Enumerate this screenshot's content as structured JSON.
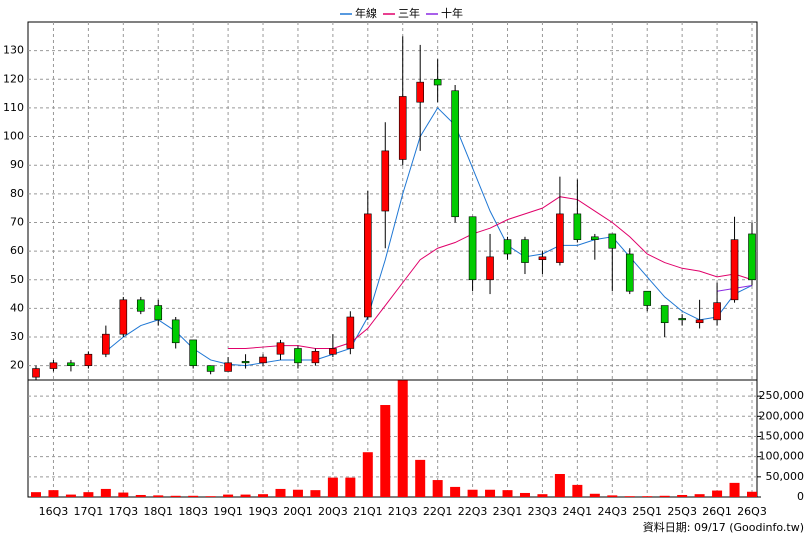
{
  "chart_data": {
    "type": "candlestick",
    "categories": [
      null,
      "16Q3",
      null,
      "17Q1",
      null,
      "17Q3",
      null,
      "18Q1",
      null,
      "18Q3",
      null,
      "19Q1",
      null,
      "19Q3",
      null,
      "20Q1",
      null,
      "20Q3",
      null,
      "21Q1",
      null,
      "21Q3",
      null,
      "22Q1",
      null,
      "22Q3",
      null,
      "23Q1",
      null,
      "23Q3",
      null,
      "24Q1",
      null,
      "24Q3",
      null,
      "25Q1",
      null,
      "25Q3",
      null,
      "26Q1",
      null,
      "26Q3"
    ],
    "open": [
      16,
      19,
      21,
      20,
      24,
      31,
      43,
      41,
      36,
      29,
      20,
      18,
      21.5,
      21,
      24,
      26,
      21,
      24,
      26,
      37,
      74,
      92,
      112,
      120,
      116,
      72,
      50,
      64,
      64,
      57,
      56,
      73,
      65,
      66,
      59,
      46,
      41,
      36.5,
      35,
      36,
      43,
      66
    ],
    "high": [
      20,
      22,
      22,
      25,
      34,
      44,
      44,
      43,
      37,
      29,
      20,
      23,
      24,
      24,
      29,
      27,
      26,
      31,
      39,
      81,
      105,
      135,
      132,
      127,
      118,
      72,
      66,
      65,
      65,
      60,
      86,
      85,
      66,
      66,
      61,
      46,
      41,
      38,
      43,
      49,
      72,
      70
    ],
    "low": [
      15,
      18,
      18,
      19,
      23,
      30,
      38,
      34,
      26,
      19,
      17,
      18,
      19,
      20,
      22,
      19,
      20,
      23,
      24,
      36,
      61,
      90,
      95,
      112,
      70,
      46,
      45,
      57,
      52,
      52,
      55,
      63,
      57,
      46,
      45,
      39,
      30,
      34,
      33,
      34,
      42,
      48
    ],
    "close": [
      19,
      21,
      20,
      24,
      31,
      43,
      39,
      36,
      28,
      20,
      18,
      21,
      21,
      23,
      28,
      21,
      25,
      26,
      37,
      73,
      95,
      114,
      119,
      118,
      72,
      50,
      58,
      59,
      56,
      58,
      73,
      64,
      64,
      61,
      46,
      41,
      35,
      36,
      36,
      42,
      64,
      50
    ],
    "up_color": "#ff0000",
    "down_color": "#00cc00",
    "ylim": [
      15,
      140
    ],
    "yticks": [
      20,
      30,
      40,
      50,
      60,
      70,
      80,
      90,
      100,
      110,
      120,
      130
    ],
    "series": [
      {
        "name": "年線",
        "color": "#1f77d4",
        "values": [
          null,
          null,
          null,
          null,
          25,
          30,
          34,
          36,
          32,
          26,
          22,
          20.5,
          20,
          21,
          22,
          22,
          22,
          24,
          26,
          37,
          57,
          80,
          100,
          110,
          104,
          89,
          74,
          62,
          58,
          59,
          62,
          62,
          64,
          65,
          58,
          51,
          44,
          39,
          36,
          37,
          45,
          48
        ]
      },
      {
        "name": "三年",
        "color": "#e0006a",
        "values": [
          null,
          null,
          null,
          null,
          null,
          null,
          null,
          null,
          null,
          null,
          null,
          26,
          26,
          26.5,
          27,
          27,
          26,
          26,
          28,
          33,
          41,
          49,
          57,
          61,
          63,
          66,
          68,
          71,
          73,
          75,
          79,
          78,
          74,
          70,
          65,
          59,
          56,
          54,
          53,
          51,
          52,
          50
        ]
      },
      {
        "name": "十年",
        "color": "#8a2be2",
        "values": [
          null,
          null,
          null,
          null,
          null,
          null,
          null,
          null,
          null,
          null,
          null,
          null,
          null,
          null,
          null,
          null,
          null,
          null,
          null,
          null,
          null,
          null,
          null,
          null,
          null,
          null,
          null,
          null,
          null,
          null,
          null,
          null,
          null,
          null,
          null,
          null,
          null,
          null,
          null,
          46,
          47,
          48
        ]
      }
    ],
    "volume": {
      "color": "#ff0000",
      "axis": "y2",
      "values": [
        12000,
        17000,
        6000,
        12000,
        20000,
        11000,
        5000,
        4000,
        3000,
        3000,
        2000,
        6000,
        6000,
        7000,
        20000,
        18000,
        17000,
        48000,
        48000,
        111000,
        228000,
        289000,
        92000,
        42000,
        25000,
        18000,
        18000,
        17000,
        10000,
        7000,
        57000,
        30000,
        8000,
        4000,
        2000,
        2000,
        3000,
        5000,
        7000,
        16000,
        35000,
        13000
      ]
    },
    "y2lim": [
      0,
      290000
    ],
    "y2ticks": [
      0,
      {
        "value": 50000,
        "label": "50,000"
      },
      {
        "value": 100000,
        "label": "100,000"
      },
      {
        "value": 150000,
        "label": "150,000"
      },
      {
        "value": 200000,
        "label": "200,000"
      },
      {
        "value": 250000,
        "label": "250,000"
      }
    ],
    "grid": true,
    "legend": "top",
    "note": "資料日期: 09/17 (Goodinfo.tw)"
  }
}
